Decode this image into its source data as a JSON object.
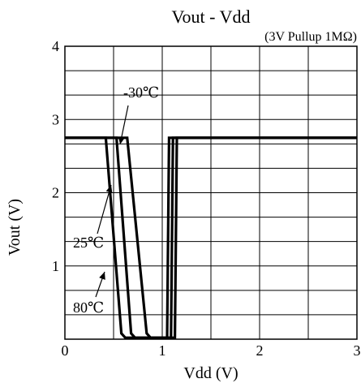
{
  "chart_data": {
    "type": "line",
    "title": "Vout - Vdd",
    "subtitle": "(3V Pullup 1MΩ)",
    "xlabel": "Vdd (V)",
    "ylabel": "Vout (V)",
    "xlim": [
      0,
      3
    ],
    "ylim": [
      0,
      4
    ],
    "xticks": [
      "0",
      "1",
      "2",
      "3"
    ],
    "yticks": [
      "1",
      "2",
      "3",
      "4"
    ],
    "grid": true,
    "series": [
      {
        "name": "80℃",
        "x": [
          0,
          0.42,
          0.58,
          0.62,
          1.05,
          1.07,
          3.0
        ],
        "y": [
          2.75,
          2.75,
          0.08,
          0.02,
          0.02,
          2.75,
          2.75
        ]
      },
      {
        "name": "25℃",
        "x": [
          0,
          0.53,
          0.68,
          0.72,
          1.09,
          1.11,
          3.0
        ],
        "y": [
          2.75,
          2.75,
          0.08,
          0.02,
          0.02,
          2.75,
          2.75
        ]
      },
      {
        "name": "-30℃",
        "x": [
          0,
          0.64,
          0.84,
          0.88,
          1.13,
          1.15,
          3.0
        ],
        "y": [
          2.75,
          2.75,
          0.08,
          0.02,
          0.02,
          2.75,
          2.75
        ]
      }
    ],
    "annotations": [
      {
        "text": "-30℃",
        "series": "-30℃"
      },
      {
        "text": "25℃",
        "series": "25℃"
      },
      {
        "text": "80℃",
        "series": "80℃"
      }
    ]
  }
}
